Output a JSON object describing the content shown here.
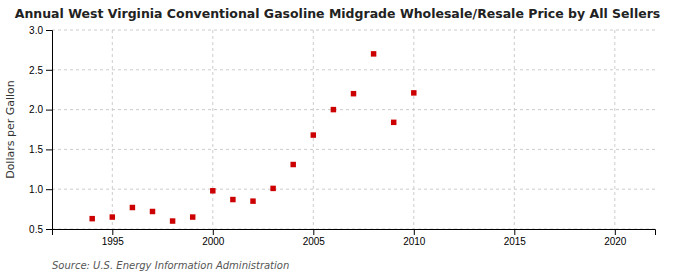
{
  "chart_data": {
    "type": "scatter",
    "title": "Annual West Virginia Conventional Gasoline Midgrade Wholesale/Resale Price by All Sellers",
    "ylabel": "Dollars per Gallon",
    "source": "Source: U.S. Energy Information Administration",
    "x": [
      1994,
      1995,
      1996,
      1997,
      1998,
      1999,
      2000,
      2001,
      2002,
      2003,
      2004,
      2005,
      2006,
      2007,
      2008,
      2009,
      2010
    ],
    "values": [
      0.63,
      0.65,
      0.77,
      0.72,
      0.6,
      0.65,
      0.98,
      0.87,
      0.85,
      1.01,
      1.31,
      1.68,
      2.0,
      2.2,
      2.7,
      1.84,
      2.21
    ],
    "color": "#cc0000",
    "marker": "square",
    "xlim": [
      1992,
      2022
    ],
    "xticks": [
      1995,
      2000,
      2005,
      2010,
      2015,
      2020
    ],
    "ylim": [
      0.5,
      3.0
    ],
    "yticks": [
      0.5,
      {
        "value": 1.0,
        "label": "1.0"
      },
      1.5,
      {
        "value": 2.0,
        "label": "2.0"
      },
      2.5,
      {
        "value": 3.0,
        "label": "3.0"
      }
    ],
    "grid": true
  }
}
